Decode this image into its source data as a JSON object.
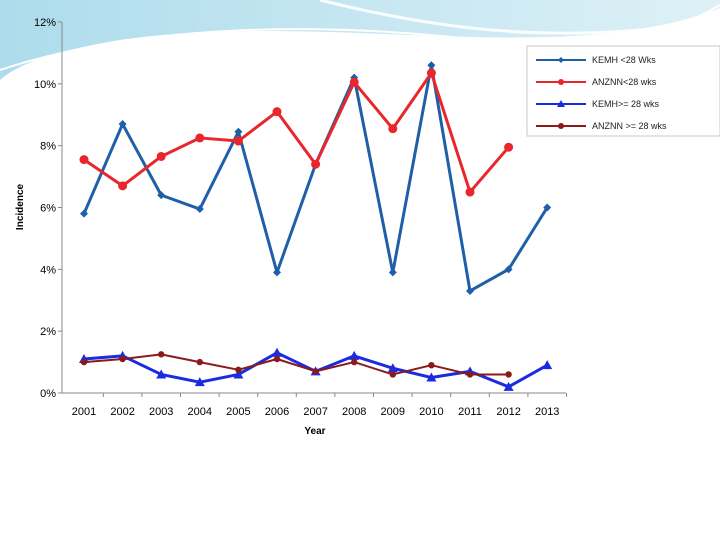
{
  "chart_data": {
    "type": "line",
    "title": "",
    "xlabel": "Year",
    "ylabel": "Incidence",
    "ylim": [
      0,
      12
    ],
    "yticks": [
      0,
      2,
      4,
      6,
      8,
      10,
      12
    ],
    "ytick_labels": [
      "0%",
      "2%",
      "4%",
      "6%",
      "8%",
      "10%",
      "12%"
    ],
    "categories": [
      "2001",
      "2002",
      "2003",
      "2004",
      "2005",
      "2006",
      "2007",
      "2008",
      "2009",
      "2010",
      "2011",
      "2012",
      "2013"
    ],
    "grid": false,
    "legend_position": "top-right",
    "series": [
      {
        "name": "KEMH <28 Wks",
        "color": "#1f5fa8",
        "marker": "diamond",
        "values": [
          5.8,
          8.7,
          6.4,
          5.95,
          8.45,
          3.9,
          7.4,
          10.2,
          3.9,
          10.6,
          3.3,
          4.0,
          6.0
        ]
      },
      {
        "name": "ANZNN<28 wks",
        "color": "#e8262b",
        "marker": "circle",
        "values": [
          7.55,
          6.7,
          7.65,
          8.25,
          8.15,
          9.1,
          7.4,
          10.05,
          8.55,
          10.35,
          6.5,
          7.95,
          null
        ]
      },
      {
        "name": "KEMH>= 28 wks",
        "color": "#1a2be0",
        "marker": "triangle",
        "values": [
          1.1,
          1.2,
          0.6,
          0.35,
          0.6,
          1.3,
          0.7,
          1.2,
          0.8,
          0.5,
          0.7,
          0.2,
          0.9
        ]
      },
      {
        "name": "ANZNN >= 28 wks",
        "color": "#8b1a1a",
        "marker": "circle",
        "values": [
          1.0,
          1.1,
          1.25,
          1.0,
          0.75,
          1.1,
          0.7,
          1.0,
          0.6,
          0.9,
          0.6,
          0.6,
          null
        ]
      }
    ]
  }
}
